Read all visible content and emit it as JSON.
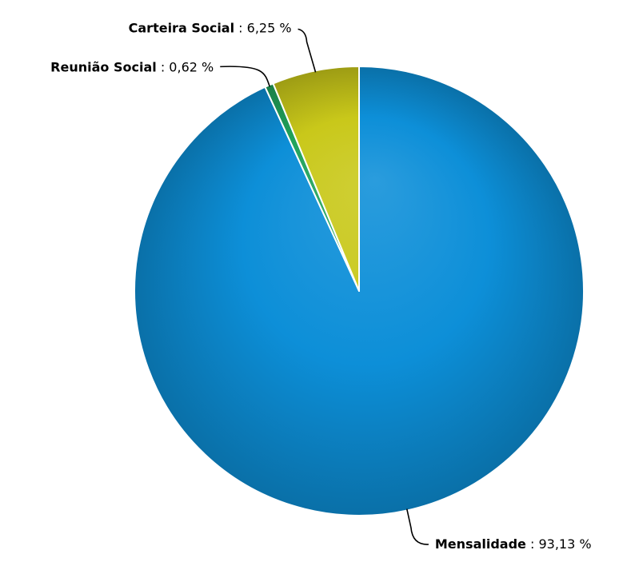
{
  "chart_data": {
    "type": "pie",
    "title": "",
    "slices": [
      {
        "name": "Mensalidade",
        "value": 93.13,
        "value_label": "93,13 %",
        "color": "#0d8fd8",
        "label_side": "right"
      },
      {
        "name": "Reunião Social",
        "value": 0.62,
        "value_label": "0,62 %",
        "color": "#21a35c",
        "label_side": "left"
      },
      {
        "name": "Carteira Social",
        "value": 6.25,
        "value_label": "6,25 %",
        "color": "#c9c81a",
        "label_side": "left"
      }
    ],
    "start_angle_deg": 0,
    "direction": "clockwise",
    "legend": "none",
    "data_labels": "name : value with connector lines"
  }
}
